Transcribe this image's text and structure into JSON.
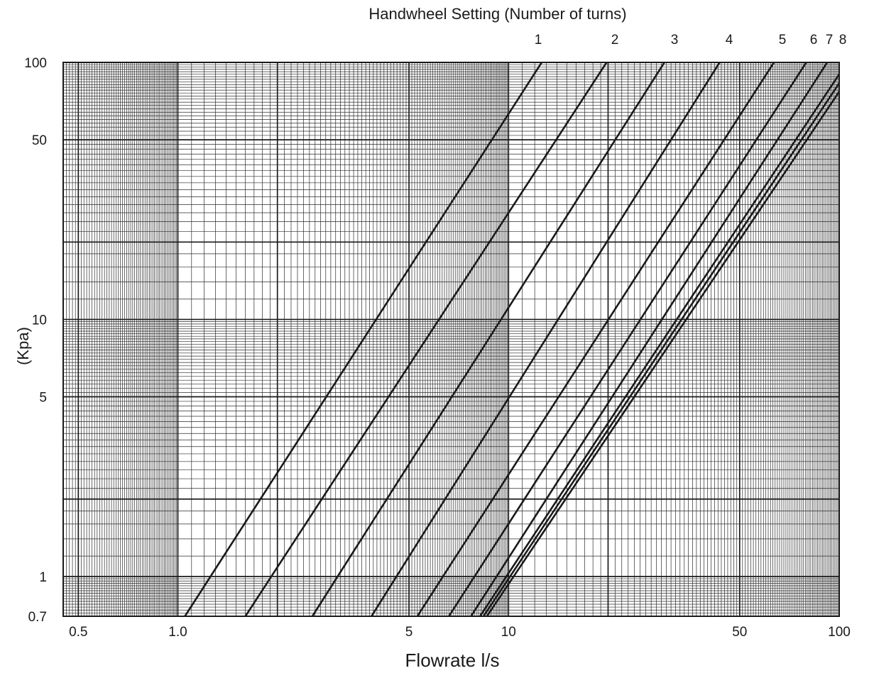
{
  "chart_data": {
    "type": "line",
    "title": "Handwheel Setting (Number of turns)",
    "xlabel": "Flowrate l/s",
    "ylabel": "(Kpa)",
    "x_scale": "log",
    "y_scale": "log",
    "xlim": [
      0.45,
      100
    ],
    "ylim": [
      0.7,
      100
    ],
    "x_ticks": [
      {
        "value": 0.5,
        "label": "0.5"
      },
      {
        "value": 1,
        "label": "1.0"
      },
      {
        "value": 5,
        "label": "5"
      },
      {
        "value": 10,
        "label": "10"
      },
      {
        "value": 50,
        "label": "50"
      },
      {
        "value": 100,
        "label": "100"
      }
    ],
    "y_ticks": [
      {
        "value": 0.7,
        "label": "0.7"
      },
      {
        "value": 1,
        "label": "1"
      },
      {
        "value": 5,
        "label": "5"
      },
      {
        "value": 10,
        "label": "10"
      },
      {
        "value": 50,
        "label": "50"
      },
      {
        "value": 100,
        "label": "100"
      }
    ],
    "grid": true,
    "series": [
      {
        "name": "1",
        "x": [
          1.05,
          12.6
        ],
        "y": [
          0.7,
          100
        ]
      },
      {
        "name": "2",
        "x": [
          1.6,
          19.8
        ],
        "y": [
          0.7,
          100
        ]
      },
      {
        "name": "3",
        "x": [
          2.55,
          29.6
        ],
        "y": [
          0.7,
          100
        ]
      },
      {
        "name": "4",
        "x": [
          3.85,
          43.5
        ],
        "y": [
          0.7,
          100
        ]
      },
      {
        "name": "5",
        "x": [
          5.3,
          63.5
        ],
        "y": [
          0.7,
          100
        ]
      },
      {
        "name": "6",
        "x": [
          6.6,
          79.5
        ],
        "y": [
          0.7,
          100
        ]
      },
      {
        "name": "7",
        "x": [
          7.7,
          92.0
        ],
        "y": [
          0.7,
          100
        ]
      },
      {
        "name": "8",
        "x": [
          8.2,
          100
        ],
        "y": [
          0.7,
          90
        ]
      },
      {
        "name": "",
        "x": [
          8.4,
          100
        ],
        "y": [
          0.7,
          83
        ]
      },
      {
        "name": "",
        "x": [
          8.6,
          100
        ],
        "y": [
          0.7,
          77
        ]
      }
    ]
  }
}
